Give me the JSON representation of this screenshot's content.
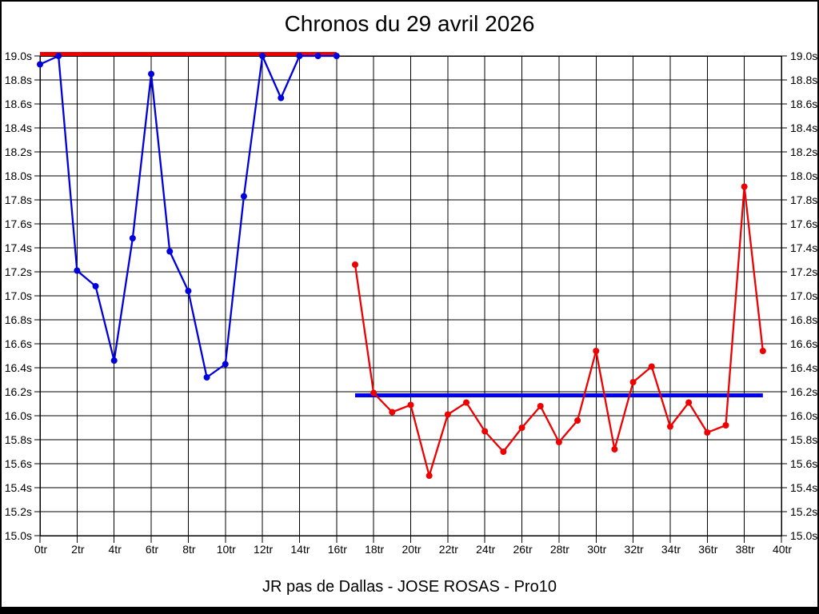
{
  "window": {
    "bottom_bar_color": "#000000",
    "background_color": "#ffffff"
  },
  "chart_data": {
    "type": "line",
    "title": "Chronos du 29 avril 2026",
    "subtitle": "JR pas de Dallas - JOSE ROSAS - Pro10",
    "x_unit": "tr",
    "y_unit": "s",
    "xlim": [
      0,
      40
    ],
    "ylim": [
      15.0,
      19.0
    ],
    "x_tick_step": 2,
    "y_tick_step": 0.2,
    "grid": true,
    "grid_color": "#000000",
    "x_tick_labels": [
      "0tr",
      "2tr",
      "4tr",
      "6tr",
      "8tr",
      "10tr",
      "12tr",
      "14tr",
      "16tr",
      "18tr",
      "20tr",
      "22tr",
      "24tr",
      "26tr",
      "28tr",
      "30tr",
      "32tr",
      "34tr",
      "36tr",
      "38tr",
      "40tr"
    ],
    "y_tick_labels": [
      "19.0s",
      "18.8s",
      "18.6s",
      "18.4s",
      "18.2s",
      "18.0s",
      "17.8s",
      "17.6s",
      "17.4s",
      "17.2s",
      "17.0s",
      "16.8s",
      "16.6s",
      "16.4s",
      "16.2s",
      "16.0s",
      "15.8s",
      "15.6s",
      "15.4s",
      "15.2s",
      "15.0s"
    ],
    "series": [
      {
        "name": "chronos-first-half",
        "color": "#0000dd",
        "marker": "circle",
        "x": [
          0,
          1,
          2,
          3,
          4,
          5,
          6,
          7,
          8,
          9,
          10,
          11,
          12,
          13,
          14,
          15,
          16
        ],
        "values": [
          18.93,
          19.0,
          17.21,
          17.08,
          16.46,
          17.48,
          18.85,
          17.37,
          17.04,
          16.32,
          16.43,
          17.83,
          19.0,
          18.65,
          19.0,
          19.0,
          19.0
        ]
      },
      {
        "name": "chronos-second-half",
        "color": "#ee0000",
        "marker": "circle",
        "x": [
          17,
          18,
          19,
          20,
          21,
          22,
          23,
          24,
          25,
          26,
          27,
          28,
          29,
          30,
          31,
          32,
          33,
          34,
          35,
          36,
          37,
          38,
          39
        ],
        "values": [
          17.26,
          16.19,
          16.03,
          16.09,
          15.5,
          16.01,
          16.11,
          15.87,
          15.7,
          15.9,
          16.08,
          15.78,
          15.96,
          16.54,
          15.72,
          16.28,
          16.41,
          15.91,
          16.11,
          15.86,
          15.92,
          17.91,
          16.54
        ]
      }
    ],
    "ref_lines": [
      {
        "name": "red-reference-line",
        "color": "#ee0000",
        "value": 19.0,
        "x_start": 0,
        "x_end": 16
      },
      {
        "name": "blue-mean-line",
        "color": "#0000ee",
        "value": 16.17,
        "x_start": 17,
        "x_end": 39
      }
    ],
    "legend": "none"
  }
}
